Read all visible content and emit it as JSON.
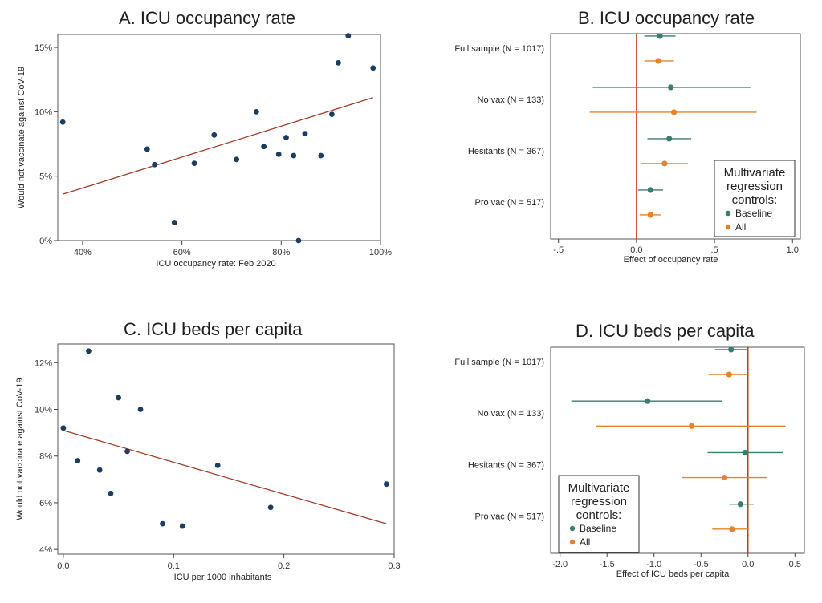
{
  "colors": {
    "point": "#1a3d63",
    "fit_line": "#a33a2a",
    "baseline": "#3a7d6e",
    "all": "#e8822a",
    "zero_line": "#c0392b",
    "axis": "#333333"
  },
  "chart_data": [
    {
      "id": "A",
      "type": "scatter",
      "title": "A. ICU occupancy rate",
      "xlabel": "ICU occupancy rate: Feb 2020",
      "ylabel": "Would not vaccinate against CoV-19",
      "xlim": [
        0.35,
        1.0
      ],
      "ylim": [
        0,
        0.16
      ],
      "xticks": [
        0.4,
        0.6,
        0.8,
        1.0
      ],
      "xtick_labels": [
        "40%",
        "60%",
        "80%",
        "100%"
      ],
      "yticks": [
        0,
        0.05,
        0.1,
        0.15
      ],
      "ytick_labels": [
        "0%",
        "5%",
        "10%",
        "15%"
      ],
      "points": [
        {
          "x": 0.36,
          "y": 0.092
        },
        {
          "x": 0.53,
          "y": 0.071
        },
        {
          "x": 0.545,
          "y": 0.059
        },
        {
          "x": 0.585,
          "y": 0.014
        },
        {
          "x": 0.625,
          "y": 0.06
        },
        {
          "x": 0.665,
          "y": 0.082
        },
        {
          "x": 0.71,
          "y": 0.063
        },
        {
          "x": 0.75,
          "y": 0.1
        },
        {
          "x": 0.765,
          "y": 0.073
        },
        {
          "x": 0.795,
          "y": 0.067
        },
        {
          "x": 0.81,
          "y": 0.08
        },
        {
          "x": 0.825,
          "y": 0.066
        },
        {
          "x": 0.835,
          "y": 0.0
        },
        {
          "x": 0.848,
          "y": 0.083
        },
        {
          "x": 0.88,
          "y": 0.066
        },
        {
          "x": 0.902,
          "y": 0.098
        },
        {
          "x": 0.915,
          "y": 0.138
        },
        {
          "x": 0.935,
          "y": 0.159
        },
        {
          "x": 0.985,
          "y": 0.134
        }
      ],
      "fit": [
        {
          "x": 0.36,
          "y": 0.036
        },
        {
          "x": 0.985,
          "y": 0.111
        }
      ]
    },
    {
      "id": "B",
      "type": "coefplot",
      "title": "B. ICU occupancy rate",
      "xlabel": "Effect of occupancy rate",
      "xlim": [
        -0.55,
        1.05
      ],
      "xticks": [
        -0.5,
        0,
        0.5,
        1.0
      ],
      "xtick_labels": [
        "-.5",
        "0.0",
        ".5",
        "1.0"
      ],
      "groups": [
        {
          "label": "Full sample (N = 1017)",
          "baseline": [
            0.15,
            0.05,
            0.25
          ],
          "all": [
            0.14,
            0.05,
            0.24
          ]
        },
        {
          "label": "No vax (N = 133)",
          "baseline": [
            0.22,
            -0.28,
            0.73
          ],
          "all": [
            0.24,
            -0.3,
            0.77
          ]
        },
        {
          "label": "Hesitants (N = 367)",
          "baseline": [
            0.21,
            0.07,
            0.35
          ],
          "all": [
            0.18,
            0.03,
            0.33
          ]
        },
        {
          "label": "Pro vac (N = 517)",
          "baseline": [
            0.09,
            0.01,
            0.17
          ],
          "all": [
            0.09,
            0.02,
            0.16
          ]
        }
      ],
      "legend": {
        "title_lines": [
          "Multivariate",
          "regression",
          "controls:"
        ],
        "items": [
          "Baseline",
          "All"
        ],
        "placement": "bottom-right"
      }
    },
    {
      "id": "C",
      "type": "scatter",
      "title": "C. ICU beds per capita",
      "xlabel": "ICU per 1000 inhabitants",
      "ylabel": "Would not vaccinate against CoV-19",
      "xlim": [
        -0.005,
        0.3
      ],
      "ylim": [
        0.038,
        0.128
      ],
      "xticks": [
        0,
        0.1,
        0.2,
        0.3
      ],
      "xtick_labels": [
        "0.0",
        "0.1",
        "0.2",
        "0.3"
      ],
      "yticks": [
        0.04,
        0.06,
        0.08,
        0.1,
        0.12
      ],
      "ytick_labels": [
        "4%",
        "6%",
        "8%",
        "10%",
        "12%"
      ],
      "points": [
        {
          "x": 0.0,
          "y": 0.092
        },
        {
          "x": 0.013,
          "y": 0.078
        },
        {
          "x": 0.023,
          "y": 0.125
        },
        {
          "x": 0.033,
          "y": 0.074
        },
        {
          "x": 0.043,
          "y": 0.064
        },
        {
          "x": 0.05,
          "y": 0.105
        },
        {
          "x": 0.058,
          "y": 0.082
        },
        {
          "x": 0.07,
          "y": 0.1
        },
        {
          "x": 0.09,
          "y": 0.051
        },
        {
          "x": 0.108,
          "y": 0.05
        },
        {
          "x": 0.14,
          "y": 0.076
        },
        {
          "x": 0.188,
          "y": 0.058
        },
        {
          "x": 0.293,
          "y": 0.068
        }
      ],
      "fit": [
        {
          "x": 0.0,
          "y": 0.091
        },
        {
          "x": 0.293,
          "y": 0.051
        }
      ]
    },
    {
      "id": "D",
      "type": "coefplot",
      "title": "D. ICU beds per capita",
      "xlabel": "Effect of ICU beds per capita",
      "xlim": [
        -2.1,
        0.6
      ],
      "xticks": [
        -2.0,
        -1.5,
        -1.0,
        -0.5,
        0.0,
        0.5
      ],
      "xtick_labels": [
        "-2.0",
        "-1.5",
        "-1.0",
        "-0.5",
        "0.0",
        "0.5"
      ],
      "groups": [
        {
          "label": "Full sample (N = 1017)",
          "baseline": [
            -0.18,
            -0.35,
            0.0
          ],
          "all": [
            -0.2,
            -0.42,
            0.0
          ]
        },
        {
          "label": "No vax (N = 133)",
          "baseline": [
            -1.07,
            -1.88,
            -0.28
          ],
          "all": [
            -0.6,
            -1.62,
            0.4
          ]
        },
        {
          "label": "Hesitants (N = 367)",
          "baseline": [
            -0.03,
            -0.43,
            0.37
          ],
          "all": [
            -0.25,
            -0.7,
            0.2
          ]
        },
        {
          "label": "Pro vac (N = 517)",
          "baseline": [
            -0.08,
            -0.2,
            0.06
          ],
          "all": [
            -0.17,
            -0.38,
            0.0
          ]
        }
      ],
      "legend": {
        "title_lines": [
          "Multivariate",
          "regression",
          "controls:"
        ],
        "items": [
          "Baseline",
          "All"
        ],
        "placement": "bottom-left"
      }
    }
  ]
}
